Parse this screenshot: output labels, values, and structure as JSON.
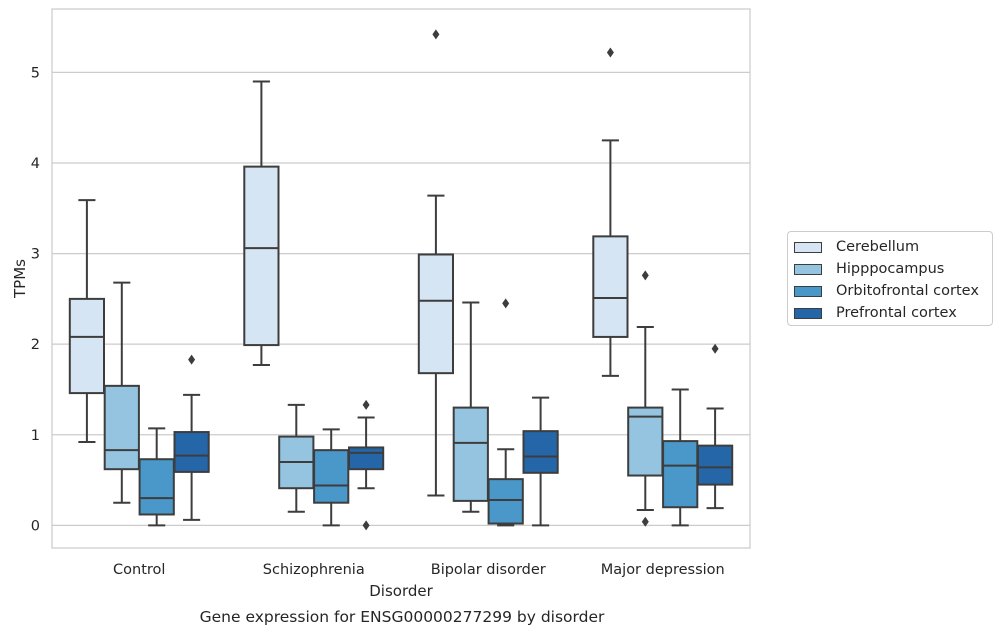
{
  "chart_data": {
    "type": "boxplot",
    "title": "Gene expression for ENSG00000277299 by disorder",
    "xlabel": "Disorder",
    "ylabel": "TPMs",
    "ylim": [
      -0.25,
      5.7
    ],
    "yticks": [
      0,
      1,
      2,
      3,
      4,
      5
    ],
    "categories": [
      "Control",
      "Schizophrenia",
      "Bipolar disorder",
      "Major depression"
    ],
    "grid": "horizontal",
    "legend_position": "right",
    "series": [
      {
        "name": "Cerebellum",
        "color": "#d6e5f4",
        "boxes": [
          {
            "whislo": 0.92,
            "q1": 1.46,
            "med": 2.08,
            "q3": 2.5,
            "whishi": 3.59,
            "fliers": []
          },
          {
            "whislo": 1.77,
            "q1": 1.99,
            "med": 3.06,
            "q3": 3.96,
            "whishi": 4.9,
            "fliers": []
          },
          {
            "whislo": 0.33,
            "q1": 1.68,
            "med": 2.48,
            "q3": 2.99,
            "whishi": 3.64,
            "fliers": [
              5.42
            ]
          },
          {
            "whislo": 1.65,
            "q1": 2.08,
            "med": 2.51,
            "q3": 3.19,
            "whishi": 4.25,
            "fliers": [
              5.22
            ]
          }
        ]
      },
      {
        "name": "Hipppocampus",
        "color": "#94c4df",
        "boxes": [
          {
            "whislo": 0.25,
            "q1": 0.62,
            "med": 0.83,
            "q3": 1.54,
            "whishi": 2.68,
            "fliers": []
          },
          {
            "whislo": 0.15,
            "q1": 0.41,
            "med": 0.7,
            "q3": 0.98,
            "whishi": 1.33,
            "fliers": []
          },
          {
            "whislo": 0.15,
            "q1": 0.27,
            "med": 0.91,
            "q3": 1.3,
            "whishi": 2.46,
            "fliers": []
          },
          {
            "whislo": 0.17,
            "q1": 0.55,
            "med": 1.2,
            "q3": 1.3,
            "whishi": 2.19,
            "fliers": [
              0.04,
              2.76
            ]
          }
        ]
      },
      {
        "name": "Orbitofrontal cortex",
        "color": "#4a98c9",
        "boxes": [
          {
            "whislo": 0.0,
            "q1": 0.12,
            "med": 0.3,
            "q3": 0.73,
            "whishi": 1.07,
            "fliers": []
          },
          {
            "whislo": 0.0,
            "q1": 0.25,
            "med": 0.44,
            "q3": 0.83,
            "whishi": 1.06,
            "fliers": []
          },
          {
            "whislo": 0.0,
            "q1": 0.02,
            "med": 0.28,
            "q3": 0.51,
            "whishi": 0.84,
            "fliers": [
              2.45
            ]
          },
          {
            "whislo": 0.0,
            "q1": 0.2,
            "med": 0.66,
            "q3": 0.93,
            "whishi": 1.5,
            "fliers": []
          }
        ]
      },
      {
        "name": "Prefrontal cortex",
        "color": "#2466a8",
        "boxes": [
          {
            "whislo": 0.06,
            "q1": 0.59,
            "med": 0.77,
            "q3": 1.03,
            "whishi": 1.44,
            "fliers": [
              1.83
            ]
          },
          {
            "whislo": 0.41,
            "q1": 0.62,
            "med": 0.8,
            "q3": 0.86,
            "whishi": 1.19,
            "fliers": [
              0.0,
              1.33
            ]
          },
          {
            "whislo": 0.0,
            "q1": 0.58,
            "med": 0.76,
            "q3": 1.04,
            "whishi": 1.41,
            "fliers": []
          },
          {
            "whislo": 0.19,
            "q1": 0.45,
            "med": 0.64,
            "q3": 0.88,
            "whishi": 1.29,
            "fliers": [
              1.95
            ]
          }
        ]
      }
    ]
  }
}
